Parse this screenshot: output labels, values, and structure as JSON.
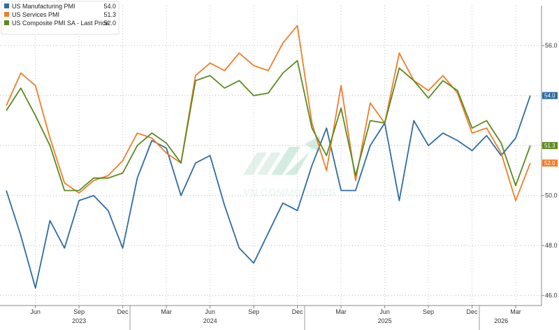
{
  "chart_data": {
    "type": "line",
    "x": [
      "2023-04",
      "2023-05",
      "2023-06",
      "2023-07",
      "2023-08",
      "2023-09",
      "2023-10",
      "2023-11",
      "2023-12",
      "2024-01",
      "2024-02",
      "2024-03",
      "2024-04",
      "2024-05",
      "2024-06",
      "2024-07",
      "2024-08",
      "2024-09",
      "2024-10",
      "2024-11",
      "2024-12",
      "2025-01",
      "2025-02",
      "2025-03",
      "2025-04",
      "2025-05",
      "2025-06",
      "2025-07",
      "2025-08",
      "2025-09",
      "2025-10",
      "2025-11",
      "2025-12",
      "2026-01",
      "2026-02",
      "2026-03",
      "2026-04"
    ],
    "series": [
      {
        "name": "US Manufacturing PMI",
        "legend_value": "54.0",
        "color": "#2e6ca4",
        "values": [
          50.2,
          48.4,
          46.3,
          49.0,
          47.9,
          49.8,
          50.0,
          49.4,
          47.9,
          50.7,
          52.2,
          51.9,
          50.0,
          51.3,
          51.6,
          49.6,
          47.9,
          47.3,
          48.5,
          49.7,
          49.4,
          51.2,
          52.7,
          50.2,
          50.2,
          52.0,
          52.9,
          49.8,
          53.0,
          52.0,
          52.5,
          52.2,
          51.8,
          52.4,
          51.6,
          52.3,
          54.0
        ]
      },
      {
        "name": "US Services PMI",
        "legend_value": "51.3",
        "color": "#f07d2a",
        "values": [
          53.6,
          54.9,
          54.4,
          52.3,
          50.5,
          50.1,
          50.6,
          50.8,
          51.4,
          52.5,
          52.3,
          51.7,
          51.3,
          54.8,
          55.3,
          55.0,
          55.7,
          55.2,
          55.0,
          56.1,
          56.8,
          52.9,
          51.0,
          54.4,
          50.6,
          53.7,
          52.9,
          55.7,
          54.6,
          54.2,
          54.8,
          54.1,
          52.5,
          52.7,
          51.7,
          49.8,
          51.3
        ]
      },
      {
        "name": "US Composite PMI SA - Last Price",
        "legend_value": "52.0",
        "color": "#5b8a1f",
        "values": [
          53.4,
          54.3,
          53.2,
          52.0,
          50.2,
          50.2,
          50.7,
          50.7,
          50.9,
          52.0,
          52.5,
          52.1,
          51.3,
          54.6,
          54.8,
          54.3,
          54.6,
          54.0,
          54.1,
          54.9,
          55.4,
          52.7,
          51.6,
          53.5,
          50.8,
          53.0,
          52.9,
          55.1,
          54.6,
          53.9,
          54.6,
          54.2,
          52.7,
          53.0,
          52.1,
          50.4,
          52.0
        ]
      }
    ],
    "ylim": [
      45.6,
      57.6
    ],
    "yticks": [
      "46.0",
      "48.0",
      "50.0",
      "52.0",
      "54.0",
      "56.0"
    ],
    "ytick_values": [
      46,
      48,
      50,
      52,
      54,
      56
    ],
    "xticks": [
      {
        "label": "Jun",
        "x": "2023-06"
      },
      {
        "label": "Sep",
        "x": "2023-09"
      },
      {
        "label": "Dec",
        "x": "2023-12"
      },
      {
        "label": "Mar",
        "x": "2024-03"
      },
      {
        "label": "Jun",
        "x": "2024-06"
      },
      {
        "label": "Sep",
        "x": "2024-09"
      },
      {
        "label": "Dec",
        "x": "2024-12"
      },
      {
        "label": "Mar",
        "x": "2025-03"
      },
      {
        "label": "Jun",
        "x": "2025-06"
      },
      {
        "label": "Sep",
        "x": "2025-09"
      },
      {
        "label": "Dec",
        "x": "2025-12"
      },
      {
        "label": "Mar",
        "x": "2026-03"
      }
    ],
    "years": [
      {
        "label": "2023",
        "x": "2023-09"
      },
      {
        "label": "2024",
        "x": "2024-06"
      },
      {
        "label": "2025",
        "x": "2025-06"
      },
      {
        "label": "2026",
        "x": "2026-02"
      }
    ],
    "last_price_tags": [
      "54.0",
      "52.0",
      "51.3"
    ],
    "grid": "horizontal dotted",
    "legend_position": "top-left",
    "watermark": "VN COMMODITIES"
  }
}
